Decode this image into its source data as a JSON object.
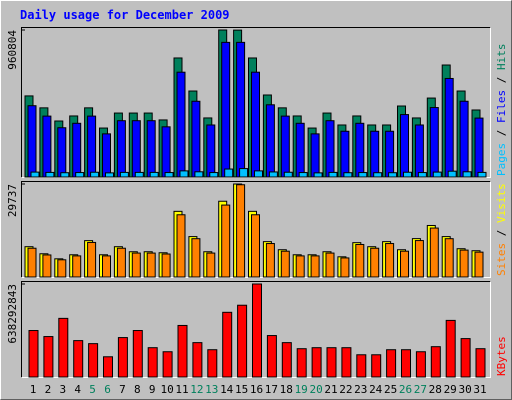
{
  "chart_data": [
    {
      "type": "bar",
      "title": "Daily usage for December 2009",
      "ylim": [
        0,
        960804
      ],
      "yticks": [
        960804
      ],
      "legend_separator": " / ",
      "series": [
        {
          "name": "Hits",
          "color": "#00805c",
          "values": [
            530000,
            452000,
            366000,
            399000,
            452000,
            320000,
            418000,
            418000,
            418000,
            373000,
            778000,
            562000,
            386000,
            960804,
            960000,
            778000,
            536000,
            452000,
            399000,
            320000,
            418000,
            340000,
            399000,
            340000,
            340000,
            464000,
            386000,
            516000,
            732000,
            562000,
            438000
          ]
        },
        {
          "name": "Files",
          "color": "#0000ff",
          "values": [
            466000,
            398000,
            322000,
            351000,
            398000,
            282000,
            368000,
            368000,
            368000,
            328000,
            685000,
            495000,
            340000,
            880000,
            880000,
            685000,
            472000,
            398000,
            351000,
            282000,
            368000,
            299000,
            351000,
            299000,
            299000,
            408000,
            340000,
            454000,
            644000,
            495000,
            385000
          ]
        },
        {
          "name": "Pages",
          "color": "#00c0ff",
          "values": [
            32000,
            30000,
            28000,
            29000,
            31000,
            27000,
            30000,
            30000,
            30000,
            29000,
            40000,
            34000,
            29000,
            52000,
            55000,
            40000,
            33000,
            31000,
            29000,
            27000,
            30000,
            28000,
            29000,
            28000,
            28000,
            31000,
            29000,
            32000,
            38000,
            34000,
            30000
          ]
        }
      ]
    },
    {
      "type": "bar",
      "ylim": [
        0,
        29737
      ],
      "yticks": [
        29737
      ],
      "legend_separator": " / ",
      "series": [
        {
          "name": "Visits",
          "color": "#ffff00",
          "values": [
            9690,
            7429,
            5814,
            7106,
            11628,
            7106,
            9690,
            8075,
            8075,
            7752,
            20995,
            12920,
            8075,
            24225,
            29737,
            20995,
            11305,
            8721,
            7106,
            7106,
            8075,
            6460,
            10982,
            9690,
            11305,
            8721,
            12274,
            16473,
            12920,
            9044,
            8398
          ]
        },
        {
          "name": "Sites",
          "color": "#ff8000",
          "values": [
            9200,
            7050,
            5500,
            6750,
            11050,
            6750,
            9200,
            7650,
            7650,
            7350,
            19900,
            12250,
            7650,
            23000,
            29500,
            19900,
            10700,
            8250,
            6750,
            6750,
            7650,
            6100,
            10400,
            9200,
            10700,
            8250,
            11650,
            15650,
            12250,
            8600,
            7950
          ]
        }
      ]
    },
    {
      "type": "bar",
      "ylim": [
        0,
        638292843
      ],
      "yticks": [
        638292843
      ],
      "categories": [
        "1",
        "2",
        "3",
        "4",
        "5",
        "6",
        "7",
        "8",
        "9",
        "10",
        "11",
        "12",
        "13",
        "14",
        "15",
        "16",
        "17",
        "18",
        "19",
        "20",
        "21",
        "22",
        "23",
        "24",
        "25",
        "26",
        "27",
        "28",
        "29",
        "30",
        "31"
      ],
      "category_colors": [
        "#000000",
        "#000000",
        "#000000",
        "#000000",
        "#00805c",
        "#00805c",
        "#000000",
        "#000000",
        "#000000",
        "#000000",
        "#000000",
        "#00805c",
        "#00805c",
        "#000000",
        "#000000",
        "#000000",
        "#000000",
        "#000000",
        "#00805c",
        "#00805c",
        "#000000",
        "#000000",
        "#000000",
        "#000000",
        "#000000",
        "#00805c",
        "#00805c",
        "#000000",
        "#000000",
        "#000000",
        "#000000"
      ],
      "series": [
        {
          "name": "KBytes",
          "color": "#ff0000",
          "values": [
            319000000,
            277500000,
            402400000,
            249800000,
            229000000,
            138800000,
            270600000,
            319000000,
            201200000,
            173400000,
            353800000,
            235900000,
            187300000,
            444000000,
            492600000,
            638292843,
            284500000,
            235900000,
            194300000,
            201200000,
            201200000,
            201200000,
            152600000,
            152600000,
            187300000,
            187300000,
            173400000,
            208100000,
            388500000,
            263600000,
            194300000
          ]
        }
      ]
    }
  ]
}
